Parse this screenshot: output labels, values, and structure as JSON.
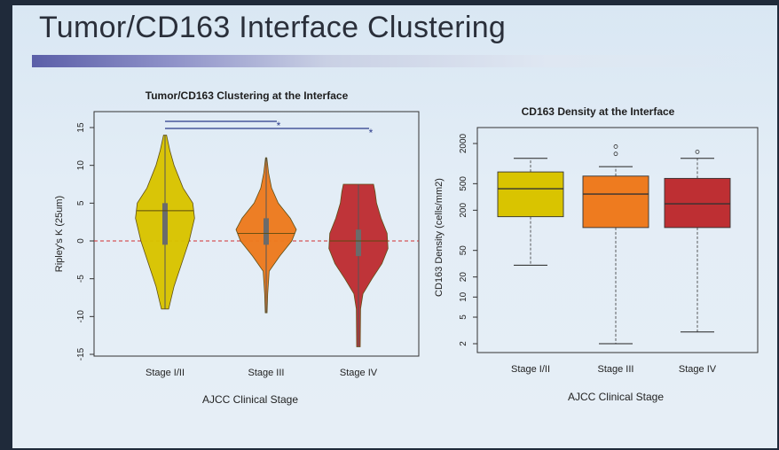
{
  "slide": {
    "title": "Tumor/CD163 Interface Clustering"
  },
  "chart_data": [
    {
      "type": "violin",
      "title": "Tumor/CD163 Clustering at the Interface",
      "xlabel": "AJCC Clinical Stage",
      "ylabel": "Ripley's K (25um)",
      "categories": [
        "Stage I/II",
        "Stage III",
        "Stage IV"
      ],
      "yticks": [
        "-15",
        "-10",
        "-5",
        "0",
        "5",
        "10",
        "15"
      ],
      "ylim": [
        -16,
        16
      ],
      "reference_line": 0,
      "colors": [
        "#d9c400",
        "#ee7b1f",
        "#be2f33"
      ],
      "violins": [
        {
          "min": -9,
          "q1": -0.5,
          "median": 4,
          "q3": 5,
          "max": 14,
          "profile": [
            [
              -9,
              0.12
            ],
            [
              -6,
              0.3
            ],
            [
              -3,
              0.55
            ],
            [
              0,
              0.8
            ],
            [
              3,
              0.98
            ],
            [
              5,
              0.92
            ],
            [
              7,
              0.6
            ],
            [
              10,
              0.3
            ],
            [
              12,
              0.16
            ],
            [
              14,
              0.05
            ]
          ]
        },
        {
          "min": -9.5,
          "q1": -0.5,
          "median": 1,
          "q3": 3,
          "max": 11,
          "profile": [
            [
              -9.5,
              0.03
            ],
            [
              -7,
              0.05
            ],
            [
              -4,
              0.1
            ],
            [
              -2,
              0.45
            ],
            [
              0,
              0.85
            ],
            [
              1.5,
              1.0
            ],
            [
              3,
              0.8
            ],
            [
              5,
              0.4
            ],
            [
              7,
              0.18
            ],
            [
              9,
              0.08
            ],
            [
              11,
              0.02
            ]
          ]
        },
        {
          "min": -14,
          "q1": -2,
          "median": 0,
          "q3": 1.5,
          "max": 7.5,
          "profile": [
            [
              -14,
              0.06
            ],
            [
              -9,
              0.07
            ],
            [
              -7,
              0.15
            ],
            [
              -5,
              0.45
            ],
            [
              -3,
              0.78
            ],
            [
              -1,
              0.98
            ],
            [
              1,
              0.95
            ],
            [
              3,
              0.75
            ],
            [
              5,
              0.6
            ],
            [
              6.5,
              0.55
            ],
            [
              7.5,
              0.5
            ]
          ]
        }
      ],
      "significance": [
        {
          "from": "Stage I/II",
          "to": "Stage III",
          "label": "*"
        },
        {
          "from": "Stage I/II",
          "to": "Stage IV",
          "label": "*"
        }
      ]
    },
    {
      "type": "box",
      "title": "CD163 Density at the Interface",
      "xlabel": "AJCC Clinical Stage",
      "ylabel": "CD163 Density (cells/mm2)",
      "yscale": "log",
      "categories": [
        "Stage I/II",
        "Stage III",
        "Stage IV"
      ],
      "yticks": [
        "2",
        "5",
        "10",
        "20",
        "50",
        "200",
        "500",
        "2000"
      ],
      "ylim": [
        1.7,
        3000
      ],
      "colors": [
        "#d9c400",
        "#ee7b1f",
        "#be2f33"
      ],
      "boxes": [
        {
          "whisker_low": 30,
          "q1": 160,
          "median": 420,
          "q3": 750,
          "whisker_high": 1200,
          "outliers": []
        },
        {
          "whisker_low": 2,
          "q1": 110,
          "median": 350,
          "q3": 650,
          "whisker_high": 900,
          "outliers": [
            1400,
            1800
          ]
        },
        {
          "whisker_low": 3,
          "q1": 110,
          "median": 250,
          "q3": 600,
          "whisker_high": 1200,
          "outliers": [
            1500
          ]
        }
      ]
    }
  ]
}
